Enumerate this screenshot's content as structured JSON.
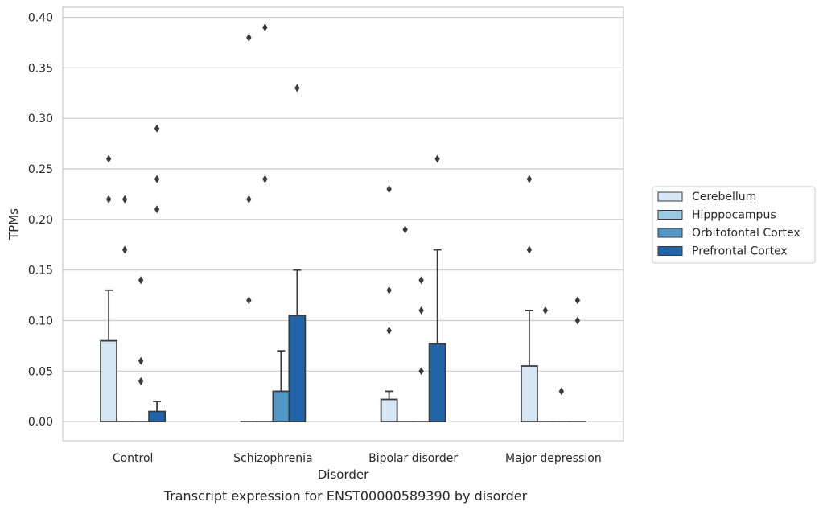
{
  "chart_data": {
    "type": "bar",
    "caption": "Transcript expression for ENST00000589390 by disorder",
    "xlabel": "Disorder",
    "ylabel": "TPMs",
    "ylim": [
      -0.019,
      0.41
    ],
    "yticks": [
      "0.00",
      "0.05",
      "0.10",
      "0.15",
      "0.20",
      "0.25",
      "0.30",
      "0.35",
      "0.40"
    ],
    "grid": true,
    "legend_position": "right",
    "categories": [
      "Control",
      "Schizophrenia",
      "Bipolar disorder",
      "Major depression"
    ],
    "series": [
      {
        "name": "Cerebellum",
        "color": "#d6e6f4",
        "values": [
          0.08,
          0.0,
          0.022,
          0.055
        ],
        "error_top": [
          0.13,
          null,
          0.03,
          0.11
        ],
        "outliers": [
          [
            0.22,
            0.26
          ],
          [
            0.12,
            0.22,
            0.38
          ],
          [
            0.09,
            0.13,
            0.23
          ],
          [
            0.17,
            0.24
          ]
        ]
      },
      {
        "name": "Hipppocampus",
        "color": "#9ac8e0",
        "values": [
          0.0,
          0.0,
          0.0,
          0.0
        ],
        "error_top": [
          null,
          null,
          null,
          null
        ],
        "outliers": [
          [
            0.17,
            0.22
          ],
          [
            0.24,
            0.39
          ],
          [
            0.19
          ],
          [
            0.11
          ]
        ]
      },
      {
        "name": "Orbitofontal Cortex",
        "color": "#5297c6",
        "values": [
          0.0,
          0.03,
          0.0,
          0.0
        ],
        "error_top": [
          null,
          0.07,
          null,
          null
        ],
        "outliers": [
          [
            0.04,
            0.06,
            0.14
          ],
          [],
          [
            0.05,
            0.11,
            0.14
          ],
          [
            0.03
          ]
        ]
      },
      {
        "name": "Prefrontal Cortex",
        "color": "#2165a8",
        "values": [
          0.01,
          0.105,
          0.077,
          0.0
        ],
        "error_top": [
          0.02,
          0.15,
          0.17,
          null
        ],
        "outliers": [
          [
            0.21,
            0.24,
            0.29
          ],
          [
            0.33
          ],
          [
            0.26
          ],
          [
            0.1,
            0.12
          ]
        ]
      }
    ]
  }
}
